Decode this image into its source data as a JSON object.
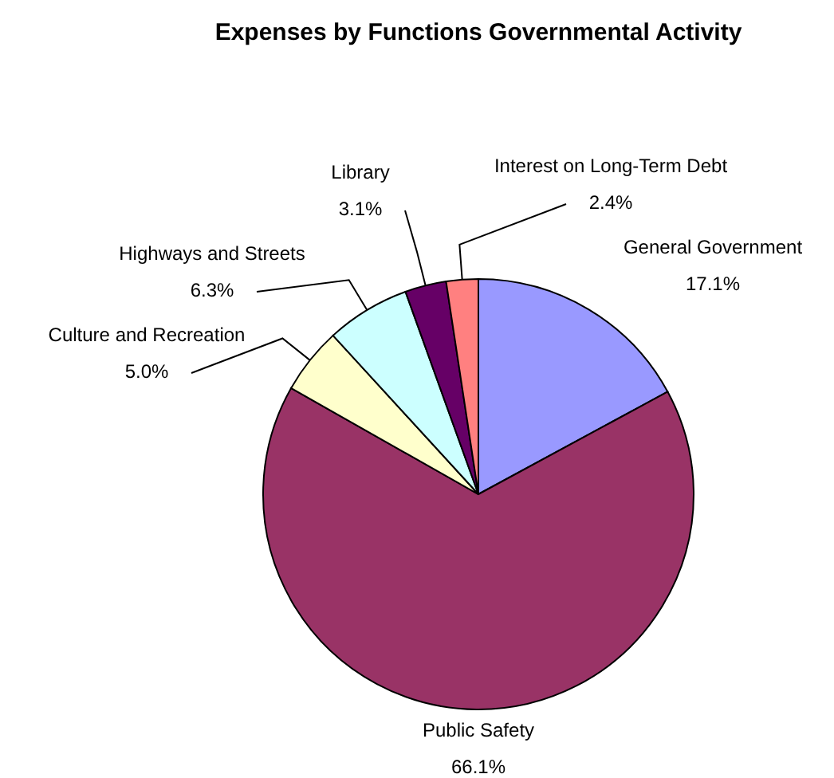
{
  "chart_data": {
    "type": "pie",
    "title": "Expenses by Functions Governmental Activity",
    "categories": [
      "General Government",
      "Public Safety",
      "Culture and Recreation",
      "Highways and Streets",
      "Library",
      "Interest on Long-Term Debt"
    ],
    "values": [
      17.1,
      66.1,
      5.0,
      6.3,
      3.1,
      2.4
    ],
    "colors": [
      "#9999ff",
      "#993366",
      "#ffffcc",
      "#ccffff",
      "#660066",
      "#ff8080"
    ],
    "value_labels": [
      "17.1%",
      "66.1%",
      "5.0%",
      "6.3%",
      "3.1%",
      "2.4%"
    ],
    "legend": false
  }
}
